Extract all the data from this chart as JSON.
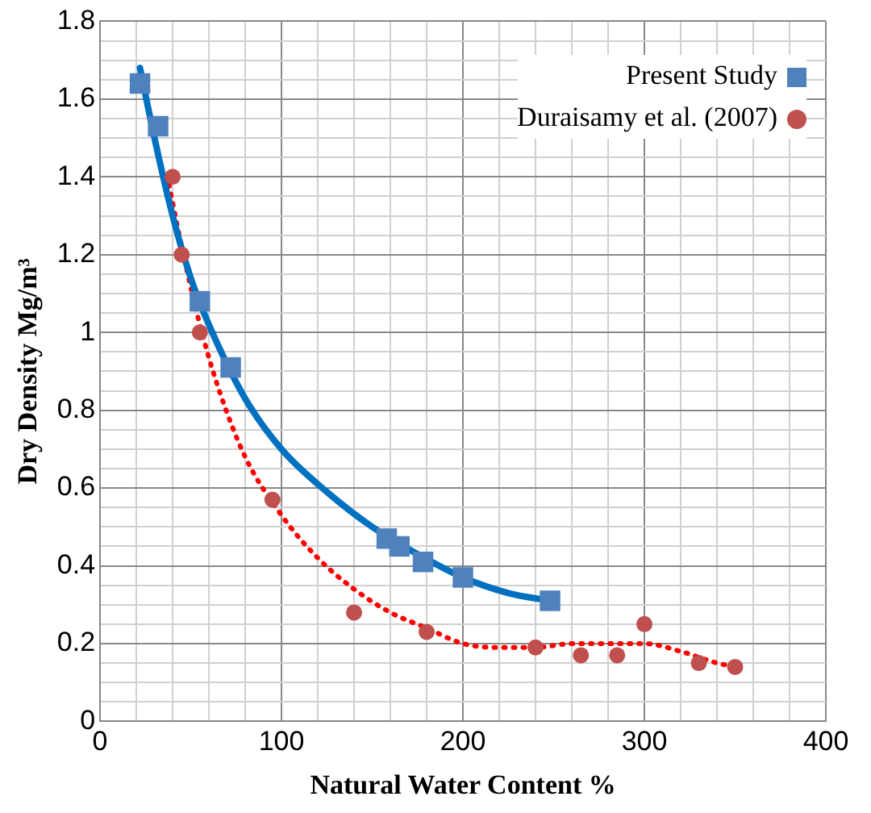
{
  "chart_data": {
    "type": "scatter",
    "xlabel": "Natural Water Content %",
    "ylabel": "Dry Density Mg/m³",
    "xlim": [
      0,
      400
    ],
    "ylim": [
      0,
      1.8
    ],
    "xticks": [
      0,
      {
        "value": 20,
        "label": null
      },
      {
        "value": 40,
        "label": null
      },
      {
        "value": 60,
        "label": null
      },
      {
        "value": 80,
        "label": null
      },
      100,
      {
        "value": 120,
        "label": null
      },
      {
        "value": 140,
        "label": null
      },
      {
        "value": 160,
        "label": null
      },
      {
        "value": 180,
        "label": null
      },
      200,
      {
        "value": 220,
        "label": null
      },
      {
        "value": 240,
        "label": null
      },
      {
        "value": 260,
        "label": null
      },
      {
        "value": 280,
        "label": null
      },
      300,
      {
        "value": 320,
        "label": null
      },
      {
        "value": 340,
        "label": null
      },
      {
        "value": 360,
        "label": null
      },
      {
        "value": 380,
        "label": null
      },
      400
    ],
    "yticks": [
      0,
      {
        "value": 0.05,
        "label": null
      },
      {
        "value": 0.1,
        "label": null
      },
      {
        "value": 0.15,
        "label": null
      },
      0.2,
      {
        "value": 0.25,
        "label": null
      },
      {
        "value": 0.3,
        "label": null
      },
      {
        "value": 0.35,
        "label": null
      },
      0.4,
      {
        "value": 0.45,
        "label": null
      },
      {
        "value": 0.5,
        "label": null
      },
      {
        "value": 0.55,
        "label": null
      },
      0.6,
      {
        "value": 0.65,
        "label": null
      },
      {
        "value": 0.7,
        "label": null
      },
      {
        "value": 0.75,
        "label": null
      },
      0.8,
      {
        "value": 0.85,
        "label": null
      },
      {
        "value": 0.9,
        "label": null
      },
      {
        "value": 0.95,
        "label": null
      },
      1,
      {
        "value": 1.05,
        "label": null
      },
      {
        "value": 1.1,
        "label": null
      },
      {
        "value": 1.15,
        "label": null
      },
      1.2,
      {
        "value": 1.25,
        "label": null
      },
      {
        "value": 1.3,
        "label": null
      },
      {
        "value": 1.35,
        "label": null
      },
      1.4,
      {
        "value": 1.45,
        "label": null
      },
      {
        "value": 1.5,
        "label": null
      },
      {
        "value": 1.55,
        "label": null
      },
      1.6,
      {
        "value": 1.65,
        "label": null
      },
      {
        "value": 1.7,
        "label": null
      },
      {
        "value": 1.75,
        "label": null
      },
      1.8
    ],
    "grid": true,
    "legend": "top right",
    "series": [
      {
        "name": "Present Study",
        "type": "scatter",
        "marker": "square",
        "color": "#4f81bd",
        "x": [
          22,
          32,
          55,
          72,
          158,
          165,
          178,
          200,
          248
        ],
        "values": [
          1.64,
          1.53,
          1.08,
          0.91,
          0.47,
          0.45,
          0.41,
          0.37,
          0.31
        ]
      },
      {
        "name": "Duraisamy et al. (2007)",
        "type": "scatter",
        "marker": "circle",
        "color": "#c0504d",
        "x": [
          40,
          45,
          55,
          95,
          140,
          180,
          240,
          265,
          285,
          300,
          330,
          350
        ],
        "values": [
          1.4,
          1.2,
          1.0,
          0.57,
          0.28,
          0.23,
          0.19,
          0.17,
          0.17,
          0.25,
          0.15,
          0.14
        ]
      },
      {
        "type": "line",
        "marker": "none",
        "line_style": "solid",
        "color": "#0070c0",
        "x": [
          22,
          30,
          40,
          50,
          60,
          80,
          100,
          125,
          150,
          175,
          200,
          225,
          248
        ],
        "values": [
          1.68,
          1.5,
          1.3,
          1.14,
          1.02,
          0.83,
          0.7,
          0.59,
          0.5,
          0.43,
          0.37,
          0.33,
          0.31
        ]
      },
      {
        "type": "line",
        "marker": "none",
        "line_style": "dotted",
        "color": "#ff0000",
        "x": [
          38,
          45,
          55,
          65,
          80,
          100,
          120,
          140,
          160,
          180,
          200,
          220,
          240,
          260,
          280,
          300,
          320,
          340,
          350
        ],
        "values": [
          1.38,
          1.22,
          1.02,
          0.86,
          0.68,
          0.53,
          0.42,
          0.34,
          0.28,
          0.24,
          0.2,
          0.19,
          0.19,
          0.2,
          0.2,
          0.2,
          0.18,
          0.15,
          0.14
        ]
      }
    ]
  }
}
